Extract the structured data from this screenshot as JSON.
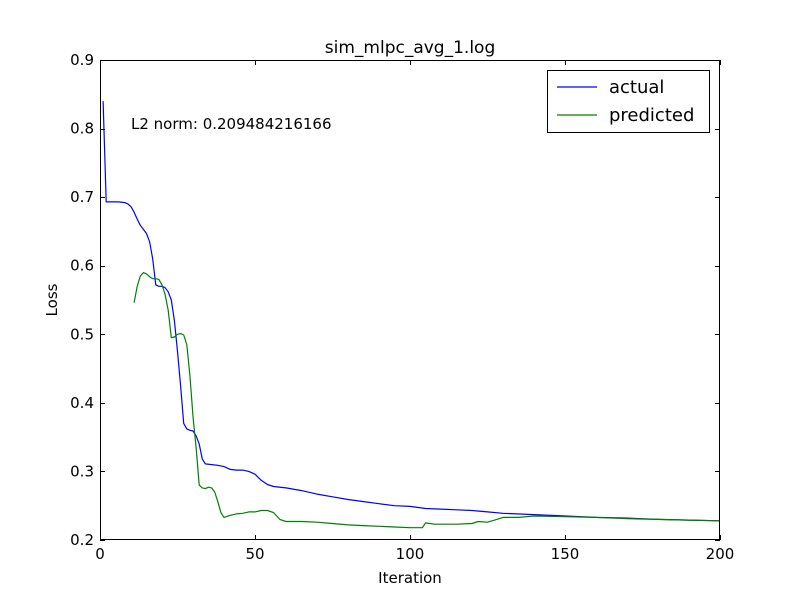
{
  "chart_data": {
    "type": "line",
    "title": "sim_mlpc_avg_1.log",
    "xlabel": "Iteration",
    "ylabel": "Loss",
    "xlim": [
      0,
      200
    ],
    "ylim": [
      0.2,
      0.9
    ],
    "x_ticks": [
      0,
      50,
      100,
      150,
      200
    ],
    "x_tick_labels": [
      "0",
      "50",
      "100",
      "150",
      "200"
    ],
    "y_ticks": [
      0.2,
      0.3,
      0.4,
      0.5,
      0.6,
      0.7,
      0.8,
      0.9
    ],
    "y_tick_labels": [
      "0.2",
      "0.3",
      "0.4",
      "0.5",
      "0.6",
      "0.7",
      "0.8",
      "0.9"
    ],
    "grid": false,
    "legend_position": "top-right",
    "annotation": "L2 norm: 0.209484216166",
    "series": [
      {
        "name": "actual",
        "color": "#0000ff",
        "points": [
          [
            1,
            0.84
          ],
          [
            2,
            0.693
          ],
          [
            4,
            0.693
          ],
          [
            6,
            0.693
          ],
          [
            8,
            0.692
          ],
          [
            9,
            0.69
          ],
          [
            10,
            0.686
          ],
          [
            11,
            0.678
          ],
          [
            12,
            0.668
          ],
          [
            13,
            0.659
          ],
          [
            14,
            0.653
          ],
          [
            15,
            0.647
          ],
          [
            16,
            0.635
          ],
          [
            17,
            0.61
          ],
          [
            18,
            0.572
          ],
          [
            19,
            0.57
          ],
          [
            20,
            0.57
          ],
          [
            21,
            0.568
          ],
          [
            22,
            0.562
          ],
          [
            23,
            0.55
          ],
          [
            24,
            0.52
          ],
          [
            25,
            0.475
          ],
          [
            26,
            0.425
          ],
          [
            27,
            0.37
          ],
          [
            28,
            0.362
          ],
          [
            29,
            0.36
          ],
          [
            30,
            0.359
          ],
          [
            31,
            0.352
          ],
          [
            32,
            0.34
          ],
          [
            33,
            0.318
          ],
          [
            34,
            0.311
          ],
          [
            36,
            0.31
          ],
          [
            38,
            0.309
          ],
          [
            40,
            0.307
          ],
          [
            42,
            0.303
          ],
          [
            44,
            0.302
          ],
          [
            46,
            0.302
          ],
          [
            48,
            0.3
          ],
          [
            50,
            0.296
          ],
          [
            52,
            0.287
          ],
          [
            54,
            0.281
          ],
          [
            56,
            0.278
          ],
          [
            60,
            0.276
          ],
          [
            65,
            0.272
          ],
          [
            70,
            0.267
          ],
          [
            75,
            0.263
          ],
          [
            80,
            0.259
          ],
          [
            85,
            0.256
          ],
          [
            90,
            0.253
          ],
          [
            95,
            0.25
          ],
          [
            100,
            0.249
          ],
          [
            105,
            0.246
          ],
          [
            110,
            0.245
          ],
          [
            115,
            0.244
          ],
          [
            120,
            0.243
          ],
          [
            125,
            0.241
          ],
          [
            130,
            0.239
          ],
          [
            140,
            0.237
          ],
          [
            150,
            0.235
          ],
          [
            160,
            0.233
          ],
          [
            170,
            0.232
          ],
          [
            180,
            0.23
          ],
          [
            190,
            0.229
          ],
          [
            200,
            0.228
          ]
        ]
      },
      {
        "name": "predicted",
        "color": "#008000",
        "points": [
          [
            11,
            0.546
          ],
          [
            12,
            0.57
          ],
          [
            13,
            0.585
          ],
          [
            14,
            0.59
          ],
          [
            15,
            0.588
          ],
          [
            16,
            0.584
          ],
          [
            17,
            0.581
          ],
          [
            18,
            0.581
          ],
          [
            19,
            0.58
          ],
          [
            20,
            0.572
          ],
          [
            21,
            0.558
          ],
          [
            22,
            0.535
          ],
          [
            23,
            0.495
          ],
          [
            24,
            0.496
          ],
          [
            25,
            0.5
          ],
          [
            26,
            0.501
          ],
          [
            27,
            0.499
          ],
          [
            28,
            0.485
          ],
          [
            29,
            0.44
          ],
          [
            30,
            0.38
          ],
          [
            31,
            0.335
          ],
          [
            32,
            0.28
          ],
          [
            33,
            0.276
          ],
          [
            34,
            0.275
          ],
          [
            35,
            0.277
          ],
          [
            36,
            0.276
          ],
          [
            37,
            0.27
          ],
          [
            38,
            0.256
          ],
          [
            39,
            0.24
          ],
          [
            40,
            0.233
          ],
          [
            42,
            0.236
          ],
          [
            44,
            0.238
          ],
          [
            46,
            0.239
          ],
          [
            48,
            0.241
          ],
          [
            50,
            0.241
          ],
          [
            52,
            0.243
          ],
          [
            54,
            0.243
          ],
          [
            56,
            0.24
          ],
          [
            57,
            0.235
          ],
          [
            58,
            0.23
          ],
          [
            60,
            0.227
          ],
          [
            65,
            0.227
          ],
          [
            70,
            0.226
          ],
          [
            75,
            0.224
          ],
          [
            80,
            0.222
          ],
          [
            85,
            0.221
          ],
          [
            90,
            0.22
          ],
          [
            95,
            0.219
          ],
          [
            100,
            0.218
          ],
          [
            104,
            0.218
          ],
          [
            105,
            0.225
          ],
          [
            108,
            0.223
          ],
          [
            115,
            0.223
          ],
          [
            120,
            0.224
          ],
          [
            122,
            0.227
          ],
          [
            125,
            0.226
          ],
          [
            128,
            0.23
          ],
          [
            130,
            0.233
          ],
          [
            135,
            0.233
          ],
          [
            140,
            0.235
          ],
          [
            150,
            0.234
          ],
          [
            160,
            0.233
          ],
          [
            170,
            0.231
          ],
          [
            180,
            0.23
          ],
          [
            190,
            0.229
          ],
          [
            200,
            0.228
          ]
        ]
      }
    ]
  }
}
